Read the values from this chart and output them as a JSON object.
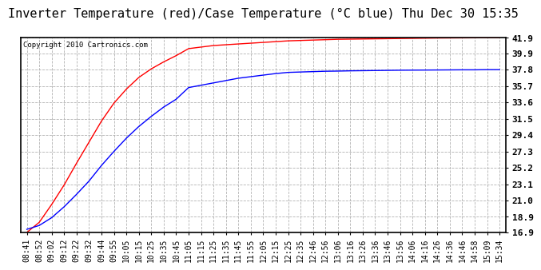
{
  "title": "Inverter Temperature (red)/Case Temperature (°C blue) Thu Dec 30 15:35",
  "copyright": "Copyright 2010 Cartronics.com",
  "yticks": [
    16.9,
    18.9,
    21.0,
    23.1,
    25.2,
    27.3,
    29.4,
    31.5,
    33.6,
    35.7,
    37.8,
    39.9,
    41.9
  ],
  "ymin": 16.9,
  "ymax": 41.9,
  "xtick_labels": [
    "08:41",
    "08:52",
    "09:02",
    "09:12",
    "09:22",
    "09:32",
    "09:44",
    "09:55",
    "10:05",
    "10:15",
    "10:25",
    "10:35",
    "10:45",
    "11:05",
    "11:15",
    "11:25",
    "11:35",
    "11:45",
    "11:55",
    "12:05",
    "12:15",
    "12:25",
    "12:35",
    "12:46",
    "12:56",
    "13:06",
    "13:16",
    "13:26",
    "13:36",
    "13:46",
    "13:56",
    "14:06",
    "14:16",
    "14:26",
    "14:36",
    "14:46",
    "14:58",
    "15:09",
    "15:34"
  ],
  "red_data": [
    16.9,
    18.2,
    20.5,
    23.0,
    25.8,
    28.5,
    31.2,
    33.5,
    35.3,
    36.8,
    37.9,
    38.8,
    39.6,
    40.5,
    40.7,
    40.9,
    41.0,
    41.1,
    41.2,
    41.3,
    41.4,
    41.5,
    41.55,
    41.6,
    41.65,
    41.7,
    41.72,
    41.74,
    41.76,
    41.78,
    41.8,
    41.82,
    41.84,
    41.86,
    41.87,
    41.88,
    41.89,
    41.9,
    41.9
  ],
  "blue_data": [
    17.3,
    17.8,
    18.8,
    20.2,
    21.8,
    23.5,
    25.5,
    27.3,
    29.0,
    30.5,
    31.8,
    33.0,
    34.0,
    35.5,
    35.8,
    36.1,
    36.4,
    36.7,
    36.9,
    37.1,
    37.3,
    37.45,
    37.5,
    37.55,
    37.6,
    37.62,
    37.65,
    37.67,
    37.69,
    37.71,
    37.73,
    37.74,
    37.75,
    37.76,
    37.77,
    37.78,
    37.78,
    37.8,
    37.8
  ],
  "bg_color": "#ffffff",
  "grid_color": "#aaaaaa",
  "title_fontsize": 11,
  "tick_fontsize": 7,
  "ytick_fontsize": 8
}
